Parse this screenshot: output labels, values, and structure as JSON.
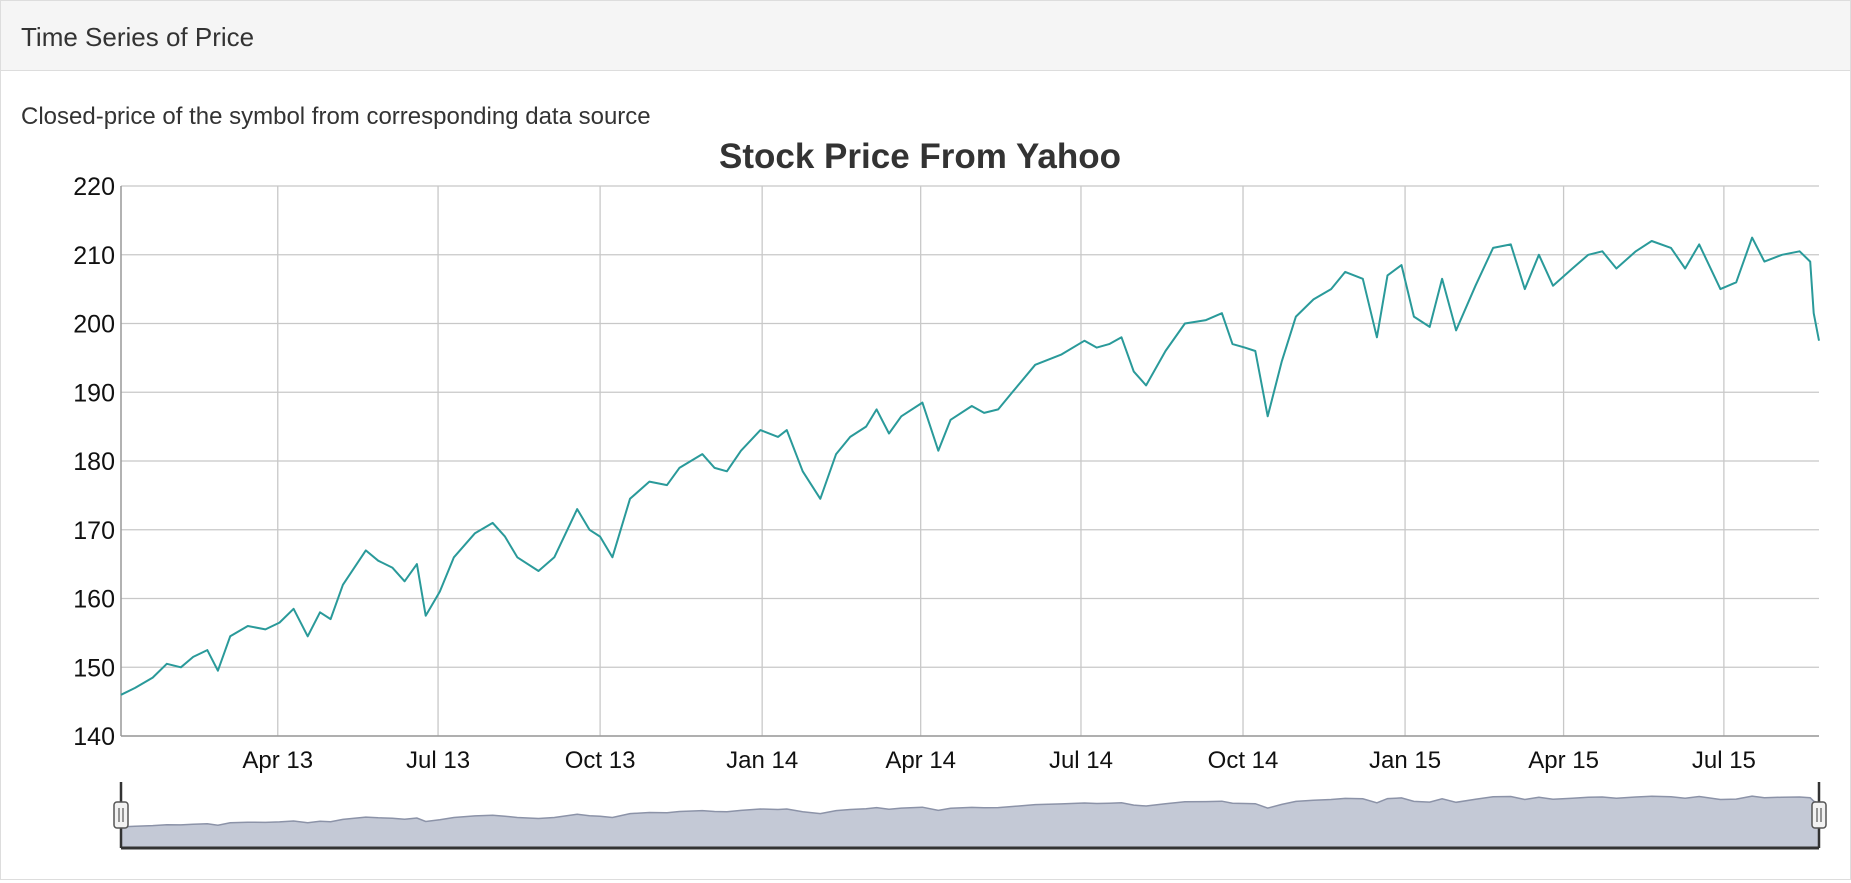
{
  "panel": {
    "title": "Time Series of Price",
    "description": "Closed-price of the symbol from corresponding data source"
  },
  "colors": {
    "line": "#2a9a9a",
    "grid": "#c8c8c8",
    "navigator_fill": "#c4c9d6",
    "navigator_line": "#8c93a8"
  },
  "chart_data": {
    "type": "line",
    "title": "Stock Price From Yahoo",
    "xlabel": "",
    "ylabel": "",
    "ylim": [
      140,
      220
    ],
    "yticks": [
      "140",
      "150",
      "160",
      "170",
      "180",
      "190",
      "200",
      "210",
      "220"
    ],
    "xlim": [
      "2013-01-02",
      "2015-08-24"
    ],
    "xticks": [
      {
        "date": "2013-04-01",
        "label": "Apr 13"
      },
      {
        "date": "2013-07-01",
        "label": "Jul 13"
      },
      {
        "date": "2013-10-01",
        "label": "Oct 13"
      },
      {
        "date": "2014-01-01",
        "label": "Jan 14"
      },
      {
        "date": "2014-04-01",
        "label": "Apr 14"
      },
      {
        "date": "2014-07-01",
        "label": "Jul 14"
      },
      {
        "date": "2014-10-01",
        "label": "Oct 14"
      },
      {
        "date": "2015-01-01",
        "label": "Jan 15"
      },
      {
        "date": "2015-04-01",
        "label": "Apr 15"
      },
      {
        "date": "2015-07-01",
        "label": "Jul 15"
      }
    ],
    "grid": true,
    "legend": "none",
    "series": [
      {
        "points": [
          [
            "2013-01-02",
            146.0
          ],
          [
            "2013-01-10",
            147.0
          ],
          [
            "2013-01-20",
            148.5
          ],
          [
            "2013-01-28",
            150.5
          ],
          [
            "2013-02-05",
            150.0
          ],
          [
            "2013-02-12",
            151.5
          ],
          [
            "2013-02-20",
            152.5
          ],
          [
            "2013-02-26",
            149.5
          ],
          [
            "2013-03-05",
            154.5
          ],
          [
            "2013-03-15",
            156.0
          ],
          [
            "2013-03-25",
            155.5
          ],
          [
            "2013-04-02",
            156.5
          ],
          [
            "2013-04-10",
            158.5
          ],
          [
            "2013-04-18",
            154.5
          ],
          [
            "2013-04-25",
            158.0
          ],
          [
            "2013-05-01",
            157.0
          ],
          [
            "2013-05-08",
            162.0
          ],
          [
            "2013-05-21",
            167.0
          ],
          [
            "2013-05-28",
            165.5
          ],
          [
            "2013-06-05",
            164.5
          ],
          [
            "2013-06-12",
            162.5
          ],
          [
            "2013-06-19",
            165.0
          ],
          [
            "2013-06-24",
            157.5
          ],
          [
            "2013-07-02",
            161.0
          ],
          [
            "2013-07-10",
            166.0
          ],
          [
            "2013-07-22",
            169.5
          ],
          [
            "2013-08-01",
            171.0
          ],
          [
            "2013-08-08",
            169.0
          ],
          [
            "2013-08-15",
            166.0
          ],
          [
            "2013-08-27",
            164.0
          ],
          [
            "2013-09-05",
            166.0
          ],
          [
            "2013-09-18",
            173.0
          ],
          [
            "2013-09-25",
            170.0
          ],
          [
            "2013-10-01",
            169.0
          ],
          [
            "2013-10-08",
            166.0
          ],
          [
            "2013-10-18",
            174.5
          ],
          [
            "2013-10-29",
            177.0
          ],
          [
            "2013-11-08",
            176.5
          ],
          [
            "2013-11-15",
            179.0
          ],
          [
            "2013-11-28",
            181.0
          ],
          [
            "2013-12-05",
            179.0
          ],
          [
            "2013-12-12",
            178.5
          ],
          [
            "2013-12-20",
            181.5
          ],
          [
            "2013-12-31",
            184.5
          ],
          [
            "2014-01-10",
            183.5
          ],
          [
            "2014-01-15",
            184.5
          ],
          [
            "2014-01-24",
            178.5
          ],
          [
            "2014-02-03",
            174.5
          ],
          [
            "2014-02-12",
            181.0
          ],
          [
            "2014-02-20",
            183.5
          ],
          [
            "2014-03-01",
            185.0
          ],
          [
            "2014-03-07",
            187.5
          ],
          [
            "2014-03-14",
            184.0
          ],
          [
            "2014-03-21",
            186.5
          ],
          [
            "2014-04-02",
            188.5
          ],
          [
            "2014-04-11",
            181.5
          ],
          [
            "2014-04-18",
            186.0
          ],
          [
            "2014-04-30",
            188.0
          ],
          [
            "2014-05-07",
            187.0
          ],
          [
            "2014-05-15",
            187.5
          ],
          [
            "2014-05-23",
            190.0
          ],
          [
            "2014-06-05",
            194.0
          ],
          [
            "2014-06-20",
            195.5
          ],
          [
            "2014-07-03",
            197.5
          ],
          [
            "2014-07-10",
            196.5
          ],
          [
            "2014-07-17",
            197.0
          ],
          [
            "2014-07-24",
            198.0
          ],
          [
            "2014-07-31",
            193.0
          ],
          [
            "2014-08-07",
            191.0
          ],
          [
            "2014-08-18",
            196.0
          ],
          [
            "2014-08-29",
            200.0
          ],
          [
            "2014-09-10",
            200.5
          ],
          [
            "2014-09-19",
            201.5
          ],
          [
            "2014-09-25",
            197.0
          ],
          [
            "2014-10-02",
            196.5
          ],
          [
            "2014-10-08",
            196.0
          ],
          [
            "2014-10-15",
            186.5
          ],
          [
            "2014-10-23",
            194.5
          ],
          [
            "2014-10-31",
            201.0
          ],
          [
            "2014-11-10",
            203.5
          ],
          [
            "2014-11-20",
            205.0
          ],
          [
            "2014-11-28",
            207.5
          ],
          [
            "2014-12-08",
            206.5
          ],
          [
            "2014-12-16",
            198.0
          ],
          [
            "2014-12-22",
            207.0
          ],
          [
            "2014-12-30",
            208.5
          ],
          [
            "2015-01-06",
            201.0
          ],
          [
            "2015-01-15",
            199.5
          ],
          [
            "2015-01-22",
            206.5
          ],
          [
            "2015-01-30",
            199.0
          ],
          [
            "2015-02-10",
            205.5
          ],
          [
            "2015-02-20",
            211.0
          ],
          [
            "2015-03-02",
            211.5
          ],
          [
            "2015-03-10",
            205.0
          ],
          [
            "2015-03-18",
            210.0
          ],
          [
            "2015-03-26",
            205.5
          ],
          [
            "2015-04-06",
            208.0
          ],
          [
            "2015-04-15",
            210.0
          ],
          [
            "2015-04-23",
            210.5
          ],
          [
            "2015-05-01",
            208.0
          ],
          [
            "2015-05-12",
            210.5
          ],
          [
            "2015-05-21",
            212.0
          ],
          [
            "2015-06-01",
            211.0
          ],
          [
            "2015-06-09",
            208.0
          ],
          [
            "2015-06-17",
            211.5
          ],
          [
            "2015-06-29",
            205.0
          ],
          [
            "2015-07-08",
            206.0
          ],
          [
            "2015-07-17",
            212.5
          ],
          [
            "2015-07-24",
            209.0
          ],
          [
            "2015-08-03",
            210.0
          ],
          [
            "2015-08-13",
            210.5
          ],
          [
            "2015-08-19",
            209.0
          ],
          [
            "2015-08-21",
            201.5
          ],
          [
            "2015-08-24",
            197.5
          ]
        ]
      }
    ]
  }
}
